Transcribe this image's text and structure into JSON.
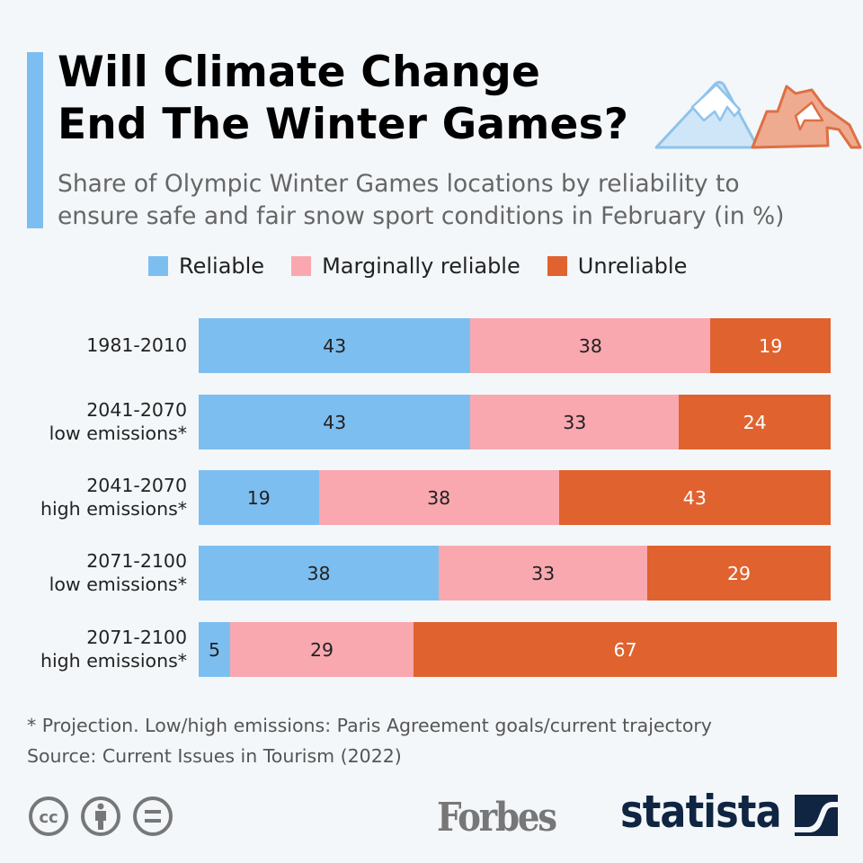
{
  "header": {
    "title_line1": "Will Climate Change",
    "title_line2": "End The Winter Games?",
    "subtitle_line1": "Share of Olympic Winter Games locations by reliability to",
    "subtitle_line2": "ensure safe and fair snow sport conditions in February (in %)"
  },
  "chart_data": {
    "type": "bar",
    "stacked": true,
    "orientation": "horizontal",
    "title": "Will Climate Change End The Winter Games?",
    "xlabel": "",
    "ylabel": "",
    "xlim": [
      0,
      100
    ],
    "legend_position": "top",
    "categories": [
      [
        "1981-2010"
      ],
      [
        "2041-2070",
        "low emissions*"
      ],
      [
        "2041-2070",
        "high emissions*"
      ],
      [
        "2071-2100",
        "low emissions*"
      ],
      [
        "2071-2100",
        "high emissions*"
      ]
    ],
    "series": [
      {
        "name": "Reliable",
        "color": "#7dbef0",
        "text_color": "#222222",
        "values": [
          43,
          43,
          19,
          38,
          5
        ]
      },
      {
        "name": "Marginally reliable",
        "color": "#f9a8b0",
        "text_color": "#222222",
        "values": [
          38,
          33,
          38,
          33,
          29
        ]
      },
      {
        "name": "Unreliable",
        "color": "#e0622f",
        "text_color": "#ffffff",
        "values": [
          19,
          24,
          43,
          29,
          67
        ]
      }
    ]
  },
  "footer": {
    "note": "* Projection. Low/high emissions: Paris Agreement goals/current trajectory",
    "source": "Source: Current Issues in Tourism (2022)",
    "logos": {
      "forbes": "Forbes",
      "statista": "statista"
    }
  }
}
